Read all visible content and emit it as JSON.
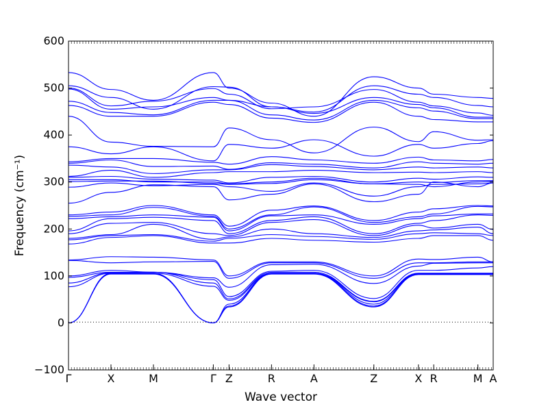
{
  "chart_data": {
    "type": "line",
    "title": "",
    "xlabel": "Wave vector",
    "ylabel": "Frequency (cm⁻¹)",
    "ylim": [
      -100,
      600
    ],
    "yticks": [
      -100,
      0,
      100,
      200,
      300,
      400,
      500,
      600
    ],
    "zero_line": 0,
    "grid": false,
    "line_color": "#0000ff",
    "high_symmetry_points": [
      {
        "label": "Γ",
        "q": 0.0
      },
      {
        "label": "X",
        "q": 0.1
      },
      {
        "label": "M",
        "q": 0.2
      },
      {
        "label": "Γ",
        "q": 0.341
      },
      {
        "label": "Z",
        "q": 0.378
      },
      {
        "label": "R",
        "q": 0.478
      },
      {
        "label": "A",
        "q": 0.578
      },
      {
        "label": "Z",
        "q": 0.719
      },
      {
        "label": "X",
        "q": 0.824
      },
      {
        "label": "R",
        "q": 0.86
      },
      {
        "label": "M",
        "q": 0.964
      },
      {
        "label": "A",
        "q": 1.0
      }
    ],
    "x": [
      0.0,
      0.1,
      0.2,
      0.341,
      0.378,
      0.478,
      0.578,
      0.719,
      0.824,
      0.86,
      0.964,
      1.0
    ],
    "series": [
      {
        "values": [
          533,
          497,
          474,
          533,
          500,
          468,
          440,
          524,
          500,
          487,
          480,
          478
        ]
      },
      {
        "values": [
          505,
          480,
          455,
          503,
          502,
          460,
          449,
          505,
          487,
          480,
          463,
          460
        ]
      },
      {
        "values": [
          500,
          462,
          472,
          499,
          487,
          456,
          460,
          497,
          470,
          462,
          447,
          442
        ]
      },
      {
        "values": [
          498,
          455,
          460,
          480,
          474,
          460,
          446,
          480,
          465,
          458,
          438,
          438
        ]
      },
      {
        "values": [
          472,
          448,
          443,
          474,
          474,
          443,
          432,
          474,
          458,
          451,
          435,
          435
        ]
      },
      {
        "values": [
          463,
          440,
          440,
          470,
          465,
          436,
          427,
          470,
          440,
          433,
          428,
          428
        ]
      },
      {
        "values": [
          440,
          385,
          376,
          375,
          415,
          390,
          362,
          417,
          386,
          407,
          389,
          390
        ]
      },
      {
        "values": [
          375,
          360,
          375,
          345,
          380,
          372,
          390,
          355,
          380,
          372,
          382,
          388
        ]
      },
      {
        "values": [
          343,
          350,
          350,
          342,
          338,
          354,
          347,
          340,
          353,
          347,
          345,
          348
        ]
      },
      {
        "values": [
          340,
          347,
          333,
          334,
          327,
          341,
          338,
          330,
          343,
          340,
          338,
          340
        ]
      },
      {
        "values": [
          336,
          332,
          318,
          326,
          326,
          337,
          333,
          326,
          332,
          330,
          332,
          330
        ]
      },
      {
        "values": [
          312,
          325,
          310,
          320,
          322,
          322,
          325,
          320,
          321,
          320,
          322,
          320
        ]
      },
      {
        "values": [
          310,
          312,
          306,
          304,
          298,
          310,
          312,
          300,
          308,
          306,
          311,
          310
        ]
      },
      {
        "values": [
          305,
          305,
          300,
          300,
          296,
          300,
          308,
          296,
          300,
          299,
          303,
          303
        ]
      },
      {
        "values": [
          301,
          302,
          302,
          297,
          295,
          297,
          305,
          296,
          295,
          290,
          300,
          301
        ]
      },
      {
        "values": [
          289,
          298,
          292,
          295,
          290,
          280,
          298,
          270,
          290,
          295,
          296,
          298
        ]
      },
      {
        "values": [
          255,
          278,
          294,
          290,
          262,
          274,
          296,
          258,
          274,
          300,
          290,
          298
        ]
      },
      {
        "values": [
          230,
          236,
          250,
          230,
          206,
          240,
          249,
          218,
          236,
          243,
          250,
          249
        ]
      },
      {
        "values": [
          227,
          230,
          246,
          227,
          200,
          230,
          247,
          214,
          226,
          232,
          248,
          247
        ]
      },
      {
        "values": [
          222,
          226,
          230,
          225,
          196,
          228,
          230,
          210,
          222,
          228,
          232,
          232
        ]
      },
      {
        "values": [
          196,
          222,
          225,
          218,
          190,
          218,
          226,
          190,
          212,
          218,
          230,
          229
        ]
      },
      {
        "values": [
          190,
          212,
          214,
          190,
          186,
          214,
          220,
          186,
          208,
          202,
          210,
          199
        ]
      },
      {
        "values": [
          180,
          188,
          210,
          178,
          183,
          200,
          190,
          182,
          196,
          198,
          204,
          190
        ]
      },
      {
        "values": [
          177,
          186,
          188,
          174,
          180,
          188,
          184,
          178,
          190,
          192,
          190,
          186
        ]
      },
      {
        "values": [
          168,
          182,
          186,
          170,
          170,
          180,
          176,
          172,
          180,
          186,
          186,
          176
        ]
      },
      {
        "values": [
          134,
          141,
          140,
          134,
          100,
          130,
          130,
          100,
          136,
          135,
          140,
          130
        ]
      },
      {
        "values": [
          133,
          128,
          130,
          131,
          95,
          128,
          128,
          95,
          128,
          128,
          130,
          130
        ]
      },
      {
        "values": [
          100,
          112,
          108,
          96,
          76,
          124,
          125,
          84,
          121,
          127,
          128,
          128
        ]
      },
      {
        "values": [
          97,
          108,
          108,
          92,
          56,
          110,
          112,
          52,
          112,
          112,
          117,
          120
        ]
      },
      {
        "values": [
          85,
          107,
          108,
          85,
          51,
          108,
          108,
          46,
          106,
          106,
          106,
          106
        ]
      },
      {
        "values": [
          77,
          106,
          106,
          78,
          48,
          106,
          106,
          45,
          105,
          105,
          105,
          105
        ]
      },
      {
        "values": [
          0,
          106,
          106,
          0,
          40,
          106,
          106,
          40,
          105,
          105,
          105,
          105
        ]
      },
      {
        "values": [
          0,
          105,
          105,
          0,
          36,
          105,
          105,
          36,
          104,
          104,
          104,
          104
        ]
      },
      {
        "values": [
          0,
          104,
          104,
          0,
          34,
          104,
          104,
          34,
          103,
          103,
          103,
          103
        ]
      }
    ]
  }
}
